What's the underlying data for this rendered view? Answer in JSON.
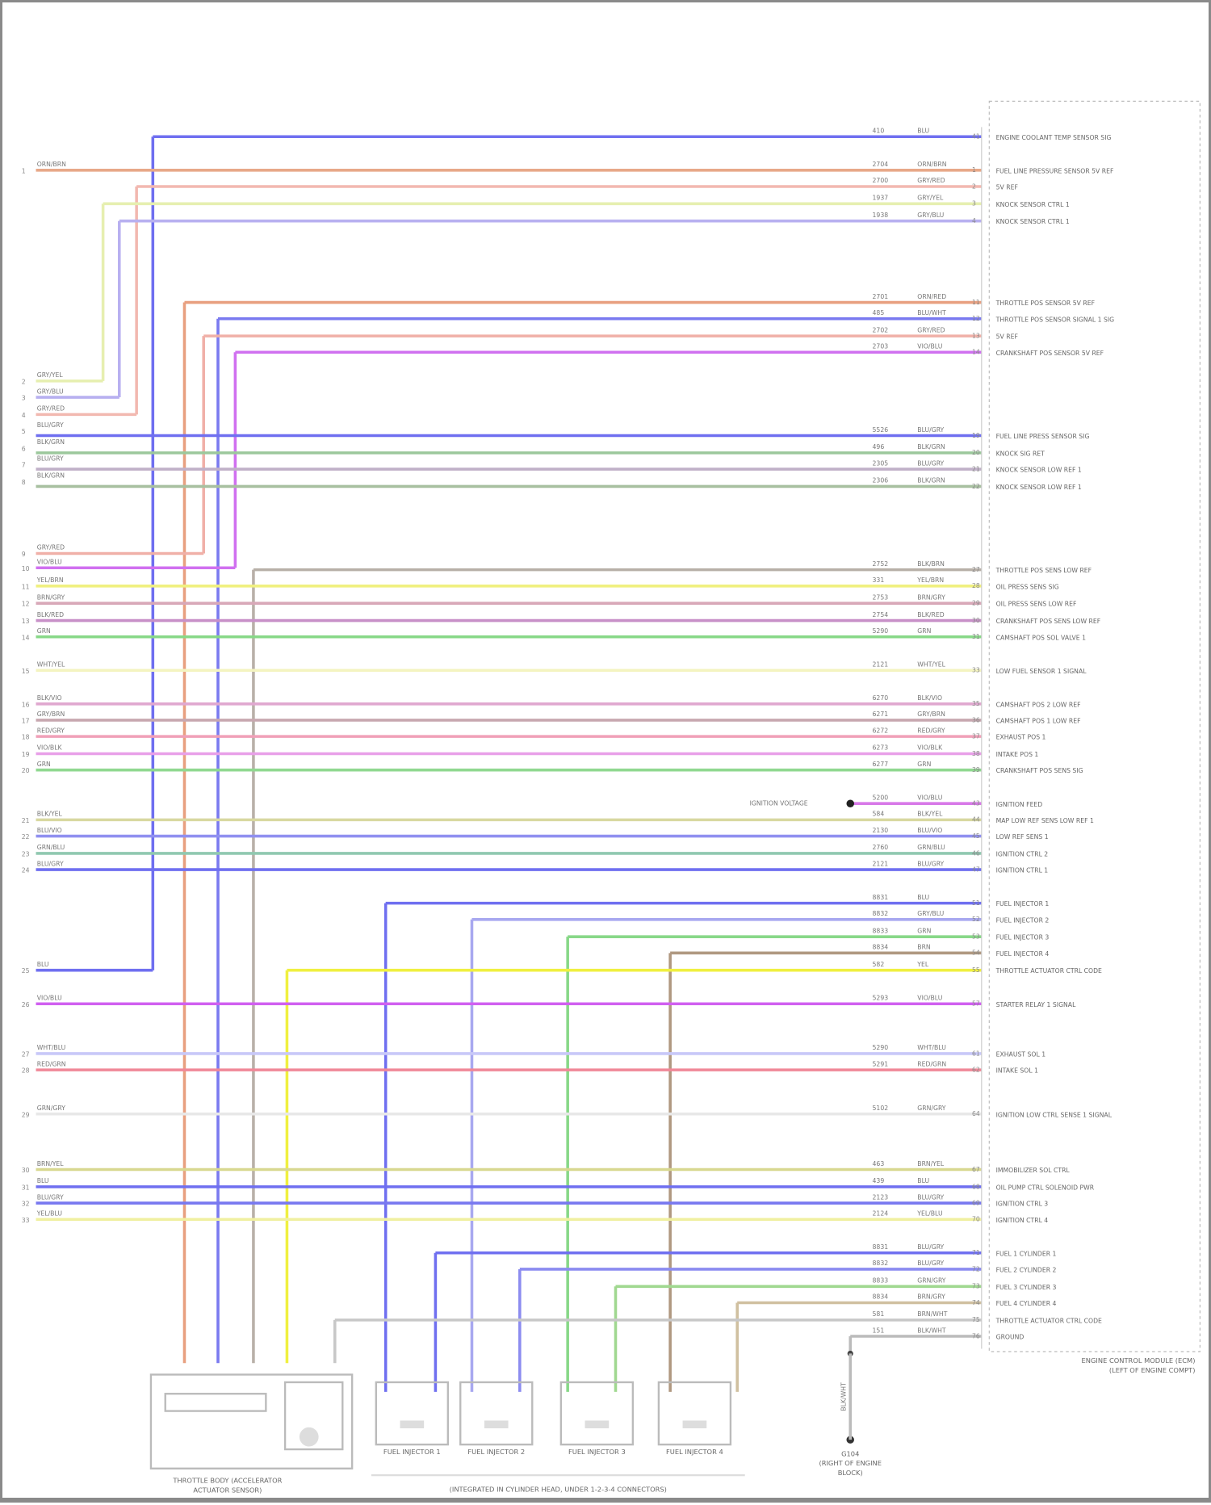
{
  "diagram": {
    "connector_label": [
      "ENGINE CONTROL MODULE (ECM)",
      "(LEFT OF ENGINE COMPT)"
    ],
    "ground_label": [
      "G104",
      "(RIGHT OF ENGINE",
      "BLOCK)"
    ],
    "ground_wire": "BLK/WHT",
    "splice_label": "IGNITION VOLTAGE",
    "group_label": "(INTEGRATED IN CYLINDER HEAD, UNDER 1-2-3-4 CONNECTORS)",
    "components": [
      {
        "name": "THROTTLE BODY (ACCELERATOR",
        "name2": "ACTUATOR SENSOR)"
      },
      {
        "name": "FUEL INJECTOR 1"
      },
      {
        "name": "FUEL INJECTOR 2"
      },
      {
        "name": "FUEL INJECTOR 3"
      },
      {
        "name": "FUEL INJECTOR 4"
      }
    ],
    "wires": [
      {
        "circuit": "410",
        "code": "BLU",
        "pin": "41",
        "function": "ENGINE COOLANT TEMP SENSOR SIG",
        "color": "#6f6ff0"
      },
      {
        "circuit": "2704",
        "code": "ORN/BRN",
        "pin": "1",
        "function": "FUEL LINE PRESSURE SENSOR 5V REF",
        "color": "#e8a888"
      },
      {
        "circuit": "2700",
        "code": "GRY/RED",
        "pin": "2",
        "function": "5V REF",
        "color": "#f2b8b0"
      },
      {
        "circuit": "1937",
        "code": "GRY/YEL",
        "pin": "3",
        "function": "KNOCK SENSOR CTRL 1",
        "color": "#e6efb0"
      },
      {
        "circuit": "1938",
        "code": "GRY/BLU",
        "pin": "4",
        "function": "KNOCK SENSOR CTRL 1",
        "color": "#b8b0f0"
      },
      {
        "circuit": "2701",
        "code": "ORN/RED",
        "pin": "11",
        "function": "THROTTLE POS SENSOR 5V REF",
        "color": "#e8a080"
      },
      {
        "circuit": "485",
        "code": "BLU/WHT",
        "pin": "12",
        "function": "THROTTLE POS SENSOR SIGNAL 1 SIG",
        "color": "#7a7af0"
      },
      {
        "circuit": "2702",
        "code": "GRY/RED",
        "pin": "13",
        "function": "5V REF",
        "color": "#f0b0a8"
      },
      {
        "circuit": "2703",
        "code": "VIO/BLU",
        "pin": "14",
        "function": "CRANKSHAFT POS SENSOR 5V REF",
        "color": "#d070f0"
      },
      {
        "circuit": "5526",
        "code": "BLU/GRY",
        "pin": "19",
        "function": "FUEL LINE PRESS SENSOR SIG",
        "color": "#7070f0"
      },
      {
        "circuit": "496",
        "code": "BLK/GRN",
        "pin": "20",
        "function": "KNOCK SIG RET",
        "color": "#9cc89c"
      },
      {
        "circuit": "2305",
        "code": "BLU/GRY",
        "pin": "21",
        "function": "KNOCK SENSOR LOW REF 1",
        "color": "#c0b0c8"
      },
      {
        "circuit": "2306",
        "code": "BLK/GRN",
        "pin": "22",
        "function": "KNOCK SENSOR LOW REF 1",
        "color": "#a8c0a0"
      },
      {
        "circuit": "2752",
        "code": "BLK/BRN",
        "pin": "27",
        "function": "THROTTLE POS SENS LOW REF",
        "color": "#b8b0a8"
      },
      {
        "circuit": "331",
        "code": "YEL/BRN",
        "pin": "28",
        "function": "OIL PRESS SENS SIG",
        "color": "#f0f080"
      },
      {
        "circuit": "2753",
        "code": "BRN/GRY",
        "pin": "29",
        "function": "OIL PRESS SENS LOW REF",
        "color": "#d8a8b8"
      },
      {
        "circuit": "2754",
        "code": "BLK/RED",
        "pin": "30",
        "function": "CRANKSHAFT POS SENS LOW REF",
        "color": "#c890c8"
      },
      {
        "circuit": "5290",
        "code": "GRN",
        "pin": "31",
        "function": "CAMSHAFT POS SOL VALVE 1",
        "color": "#88d888"
      },
      {
        "circuit": "2121",
        "code": "WHT/YEL",
        "pin": "33",
        "function": "LOW FUEL SENSOR 1 SIGNAL",
        "color": "#f4f4c0"
      },
      {
        "circuit": "6270",
        "code": "BLK/VIO",
        "pin": "35",
        "function": "CAMSHAFT POS 2 LOW REF",
        "color": "#e0a8d0"
      },
      {
        "circuit": "6271",
        "code": "GRY/BRN",
        "pin": "36",
        "function": "CAMSHAFT POS 1 LOW REF",
        "color": "#c8a8b0"
      },
      {
        "circuit": "6272",
        "code": "RED/GRY",
        "pin": "37",
        "function": "EXHAUST POS 1",
        "color": "#f0a0b8"
      },
      {
        "circuit": "6273",
        "code": "VIO/BLK",
        "pin": "38",
        "function": "INTAKE POS 1",
        "color": "#e8a0e8"
      },
      {
        "circuit": "6277",
        "code": "GRN",
        "pin": "39",
        "function": "CRANKSHAFT POS SENS SIG",
        "color": "#90d890"
      },
      {
        "circuit": "5200",
        "code": "VIO/BLU",
        "pin": "43",
        "function": "IGNITION FEED",
        "color": "#d878e8"
      },
      {
        "circuit": "584",
        "code": "BLK/YEL",
        "pin": "44",
        "function": "MAP LOW REF SENS LOW REF 1",
        "color": "#d8d8a0"
      },
      {
        "circuit": "2130",
        "code": "BLU/VIO",
        "pin": "45",
        "function": "LOW REF SENS 1",
        "color": "#9090f0"
      },
      {
        "circuit": "2760",
        "code": "GRN/BLU",
        "pin": "46",
        "function": "IGNITION CTRL 2",
        "color": "#90c8b0"
      },
      {
        "circuit": "2121",
        "code": "BLU/GRY",
        "pin": "47",
        "function": "IGNITION CTRL 1",
        "color": "#6f6ff0"
      },
      {
        "circuit": "8831",
        "code": "BLU",
        "pin": "51",
        "function": "FUEL INJECTOR 1",
        "color": "#6f6ff0"
      },
      {
        "circuit": "8832",
        "code": "GRY/BLU",
        "pin": "52",
        "function": "FUEL INJECTOR 2",
        "color": "#a8a8f0"
      },
      {
        "circuit": "8833",
        "code": "GRN",
        "pin": "53",
        "function": "FUEL INJECTOR 3",
        "color": "#88d888"
      },
      {
        "circuit": "8834",
        "code": "BRN",
        "pin": "54",
        "function": "FUEL INJECTOR 4",
        "color": "#b09880"
      },
      {
        "circuit": "582",
        "code": "YEL",
        "pin": "55",
        "function": "THROTTLE ACTUATOR CTRL CODE",
        "color": "#f0f040"
      },
      {
        "circuit": "5293",
        "code": "VIO/BLU",
        "pin": "57",
        "function": "STARTER RELAY 1 SIGNAL",
        "color": "#d060f0"
      },
      {
        "circuit": "5290",
        "code": "WHT/BLU",
        "pin": "61",
        "function": "EXHAUST SOL 1",
        "color": "#c8c8f8"
      },
      {
        "circuit": "5291",
        "code": "RED/GRN",
        "pin": "62",
        "function": "INTAKE SOL 1",
        "color": "#f08898"
      },
      {
        "circuit": "5102",
        "code": "GRN/GRY",
        "pin": "64",
        "function": "IGNITION LOW CTRL SENSE 1 SIGNAL",
        "color": "#e8e8e8"
      },
      {
        "circuit": "463",
        "code": "BRN/YEL",
        "pin": "67",
        "function": "IMMOBILIZER SOL CTRL",
        "color": "#d8d890"
      },
      {
        "circuit": "439",
        "code": "BLU",
        "pin": "68",
        "function": "OIL PUMP CTRL SOLENOID PWR",
        "color": "#6f6ff0"
      },
      {
        "circuit": "2123",
        "code": "BLU/GRY",
        "pin": "69",
        "function": "IGNITION CTRL 3",
        "color": "#7878f0"
      },
      {
        "circuit": "2124",
        "code": "YEL/BLU",
        "pin": "70",
        "function": "IGNITION CTRL 4",
        "color": "#f0f0a0"
      },
      {
        "circuit": "8831",
        "code": "BLU/GRY",
        "pin": "71",
        "function": "FUEL 1 CYLINDER 1",
        "color": "#7070f0"
      },
      {
        "circuit": "8832",
        "code": "BLU/GRY",
        "pin": "72",
        "function": "FUEL 2 CYLINDER 2",
        "color": "#8c8cf0"
      },
      {
        "circuit": "8833",
        "code": "GRN/GRY",
        "pin": "73",
        "function": "FUEL 3 CYLINDER 3",
        "color": "#a0d890"
      },
      {
        "circuit": "8834",
        "code": "BRN/GRY",
        "pin": "74",
        "function": "FUEL 4 CYLINDER 4",
        "color": "#d0c0a0"
      },
      {
        "circuit": "581",
        "code": "BRN/WHT",
        "pin": "75",
        "function": "THROTTLE ACTUATOR CTRL CODE",
        "color": "#c8c8c8"
      },
      {
        "circuit": "151",
        "code": "BLK/WHT",
        "pin": "76",
        "function": "GROUND",
        "color": "#bbbbbb"
      }
    ],
    "left_labels": [
      {
        "pin": "1",
        "code": "ORN/BRN"
      },
      {
        "pin": "2",
        "code": "GRY/YEL"
      },
      {
        "pin": "3",
        "code": "GRY/BLU"
      },
      {
        "pin": "4",
        "code": "GRY/RED"
      },
      {
        "pin": "5",
        "code": "BLU/GRY"
      },
      {
        "pin": "6",
        "code": "BLK/GRN"
      },
      {
        "pin": "7",
        "code": "BLU/GRY"
      },
      {
        "pin": "8",
        "code": "BLK/GRN"
      },
      {
        "pin": "9",
        "code": "GRY/RED"
      },
      {
        "pin": "10",
        "code": "VIO/BLU"
      },
      {
        "pin": "11",
        "code": "YEL/BRN"
      },
      {
        "pin": "12",
        "code": "BRN/GRY"
      },
      {
        "pin": "13",
        "code": "BLK/RED"
      },
      {
        "pin": "14",
        "code": "GRN"
      },
      {
        "pin": "15",
        "code": "WHT/YEL"
      },
      {
        "pin": "16",
        "code": "BLK/VIO"
      },
      {
        "pin": "17",
        "code": "GRY/BRN"
      },
      {
        "pin": "18",
        "code": "RED/GRY"
      },
      {
        "pin": "19",
        "code": "VIO/BLK"
      },
      {
        "pin": "20",
        "code": "GRN"
      },
      {
        "pin": "21",
        "code": "BLK/YEL"
      },
      {
        "pin": "22",
        "code": "BLU/VIO"
      },
      {
        "pin": "23",
        "code": "GRN/BLU"
      },
      {
        "pin": "24",
        "code": "BLU/GRY"
      },
      {
        "pin": "25",
        "code": "BLU"
      },
      {
        "pin": "26",
        "code": "VIO/BLU"
      },
      {
        "pin": "27",
        "code": "WHT/BLU"
      },
      {
        "pin": "28",
        "code": "RED/GRN"
      },
      {
        "pin": "29",
        "code": "GRN/GRY"
      },
      {
        "pin": "30",
        "code": "BRN/YEL"
      },
      {
        "pin": "31",
        "code": "BLU"
      },
      {
        "pin": "32",
        "code": "BLU/GRY"
      },
      {
        "pin": "33",
        "code": "YEL/BLU"
      }
    ]
  }
}
